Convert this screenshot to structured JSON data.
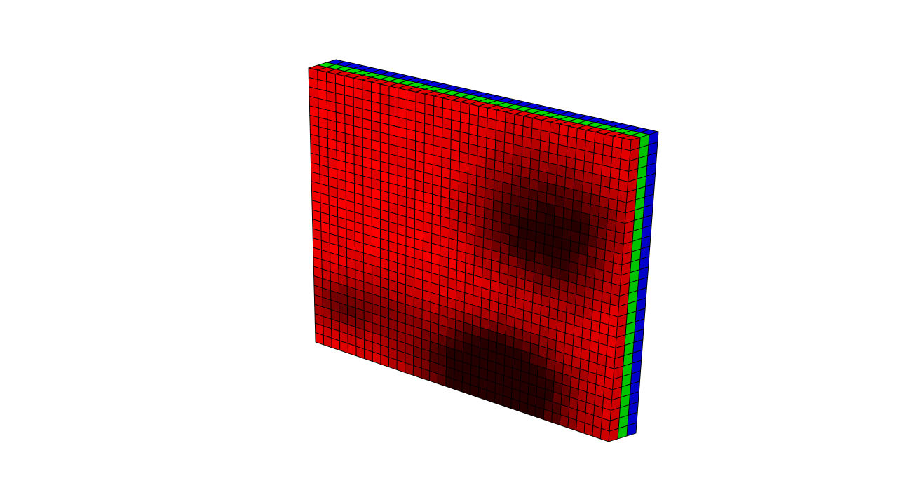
{
  "scene": {
    "background_color": "#ffffff",
    "layer_colors": {
      "front": "#ff0000",
      "middle": "#00e600",
      "back": "#0000ee"
    },
    "cell_edge_color": "#000000",
    "grid": {
      "columns": 36,
      "rows": 29,
      "layers": 3
    },
    "intensity_field": {
      "description_kind": "dark-blotches",
      "blobs": [
        {
          "u": 0.74,
          "v": 0.28,
          "strength": 0.55,
          "spread": 0.14
        },
        {
          "u": 0.83,
          "v": 0.48,
          "strength": 0.45,
          "spread": 0.1
        },
        {
          "u": 0.64,
          "v": 0.42,
          "strength": 0.35,
          "spread": 0.1
        },
        {
          "u": 0.72,
          "v": 0.93,
          "strength": 0.75,
          "spread": 0.14
        },
        {
          "u": 0.47,
          "v": 0.95,
          "strength": 0.55,
          "spread": 0.13
        },
        {
          "u": 0.6,
          "v": 0.88,
          "strength": 0.45,
          "spread": 0.1
        },
        {
          "u": 0.08,
          "v": 0.84,
          "strength": 0.45,
          "spread": 0.07
        },
        {
          "u": 0.23,
          "v": 0.8,
          "strength": 0.3,
          "spread": 0.09
        },
        {
          "u": 0.9,
          "v": 0.3,
          "strength": 0.25,
          "spread": 0.08
        }
      ]
    }
  }
}
